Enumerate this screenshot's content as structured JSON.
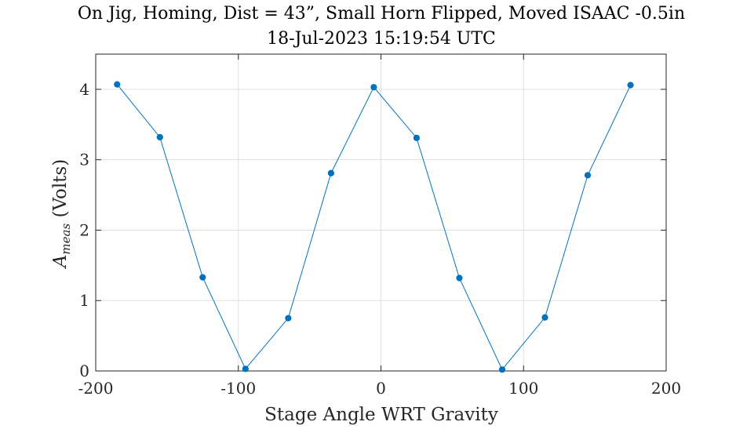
{
  "chart_data": {
    "type": "line",
    "title": "On Jig, Homing, Dist = 43”, Small Horn Flipped, Moved ISAAC -0.5in",
    "subtitle": "18-Jul-2023 15:19:54 UTC",
    "xlabel": "Stage Angle WRT Gravity",
    "ylabel_main": "A",
    "ylabel_sub": "meas",
    "ylabel_unit": " (Volts)",
    "xlim": [
      -200,
      200
    ],
    "ylim": [
      0,
      4.5
    ],
    "xticks": [
      -200,
      -100,
      0,
      100,
      200
    ],
    "xtick_labels": [
      "-200",
      "-100",
      "0",
      "100",
      "200"
    ],
    "yticks": [
      0,
      1,
      2,
      3,
      4
    ],
    "ytick_labels": [
      "0",
      "1",
      "2",
      "3",
      "4"
    ],
    "grid": true,
    "series": [
      {
        "color": "#0072bd",
        "x": [
          -185,
          -155,
          -125,
          -95,
          -65,
          -35,
          -5,
          25,
          55,
          85,
          115,
          145,
          175
        ],
        "y": [
          4.07,
          3.32,
          1.33,
          0.03,
          0.75,
          2.81,
          4.03,
          3.31,
          1.32,
          0.02,
          0.76,
          2.78,
          4.06
        ]
      }
    ]
  }
}
